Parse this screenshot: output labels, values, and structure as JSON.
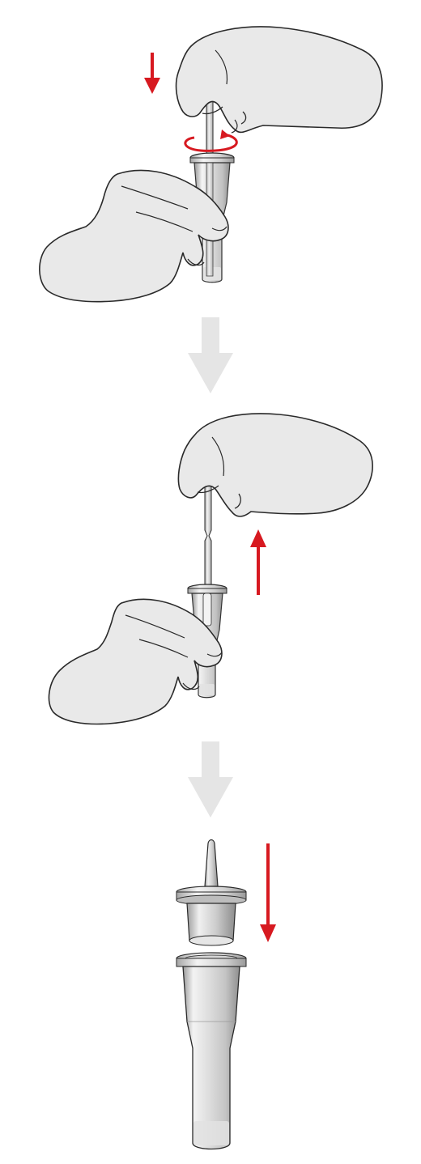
{
  "page": {
    "background": "#ffffff"
  },
  "colors": {
    "glove_fill": "#e9e9e9",
    "outline": "#2a2a2a",
    "tube_light": "#f1f1f1",
    "tube_mid": "#cfcfcf",
    "tube_dark": "#9a9a9a",
    "liquid": "#e2e2e2",
    "accent_red": "#d71920",
    "step_arrow": "#e5e5e5"
  },
  "steps": [
    {
      "id": "step-1",
      "action": "insert-swab-and-rotate",
      "arrow": "down",
      "rotation": true
    },
    {
      "id": "step-2",
      "action": "withdraw-swab",
      "arrow": "up"
    },
    {
      "id": "step-3",
      "action": "attach-dropper-cap",
      "arrow": "down"
    }
  ],
  "icons": [
    "glove-hand-icon",
    "swab-icon",
    "extraction-tube-icon",
    "dropper-cap-icon",
    "rotate-arrow-icon",
    "down-arrow-icon",
    "up-arrow-icon"
  ]
}
